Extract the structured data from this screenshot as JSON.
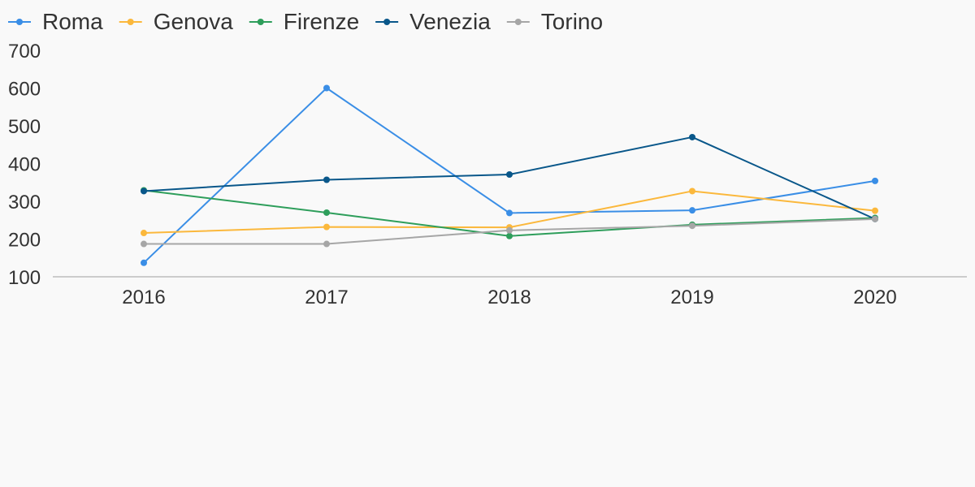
{
  "chart_data": {
    "type": "line",
    "title": "",
    "xlabel": "",
    "ylabel": "",
    "x": [
      "2016",
      "2017",
      "2018",
      "2019",
      "2020"
    ],
    "ylim": [
      100,
      700
    ],
    "yticks": [
      700,
      600,
      500,
      400,
      300,
      200,
      100
    ],
    "grid": false,
    "legend_position": "top-left",
    "series": [
      {
        "name": "Roma",
        "color": "#3a8ee6",
        "values": [
          137,
          600,
          269,
          276,
          354
        ]
      },
      {
        "name": "Genova",
        "color": "#fbb83c",
        "values": [
          216,
          232,
          231,
          327,
          275
        ]
      },
      {
        "name": "Firenze",
        "color": "#2e9e5b",
        "values": [
          329,
          270,
          208,
          238,
          256
        ]
      },
      {
        "name": "Venezia",
        "color": "#09578a",
        "values": [
          327,
          357,
          371,
          470,
          253
        ]
      },
      {
        "name": "Torino",
        "color": "#a6a6a6",
        "values": [
          187,
          187,
          223,
          235,
          253
        ]
      }
    ]
  }
}
